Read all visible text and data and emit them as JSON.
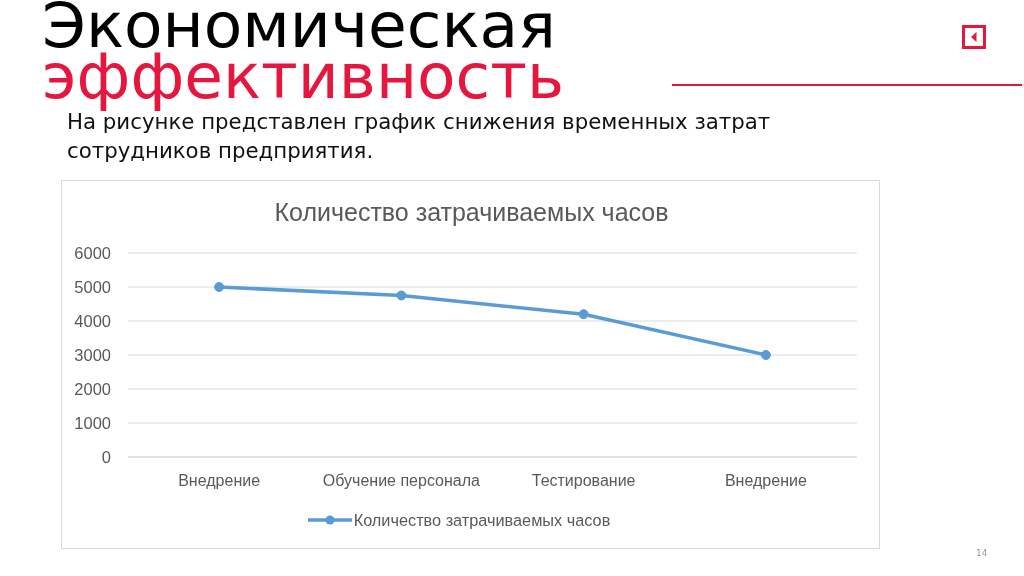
{
  "chart_data": {
    "type": "line",
    "title": "Количество затрачиваемых часов",
    "categories": [
      "Внедрение",
      "Обучение персонала",
      "Тестирование",
      "Внедрение"
    ],
    "series": [
      {
        "name": "Количество затрачиваемых часов",
        "color": "#5b9bd5",
        "values": [
          5000,
          4750,
          4200,
          3000
        ]
      }
    ],
    "ylim": [
      0,
      6000
    ],
    "yticks": [
      0,
      1000,
      2000,
      3000,
      4000,
      5000,
      6000
    ],
    "grid": "y",
    "legend": "bottom",
    "marker": "circle",
    "line_style": "solid",
    "annotations": [
      "Экономическая",
      "эффективность",
      "На рисунке представлен график снижения временных затрат сотрудников предприятия.",
      "14"
    ]
  }
}
